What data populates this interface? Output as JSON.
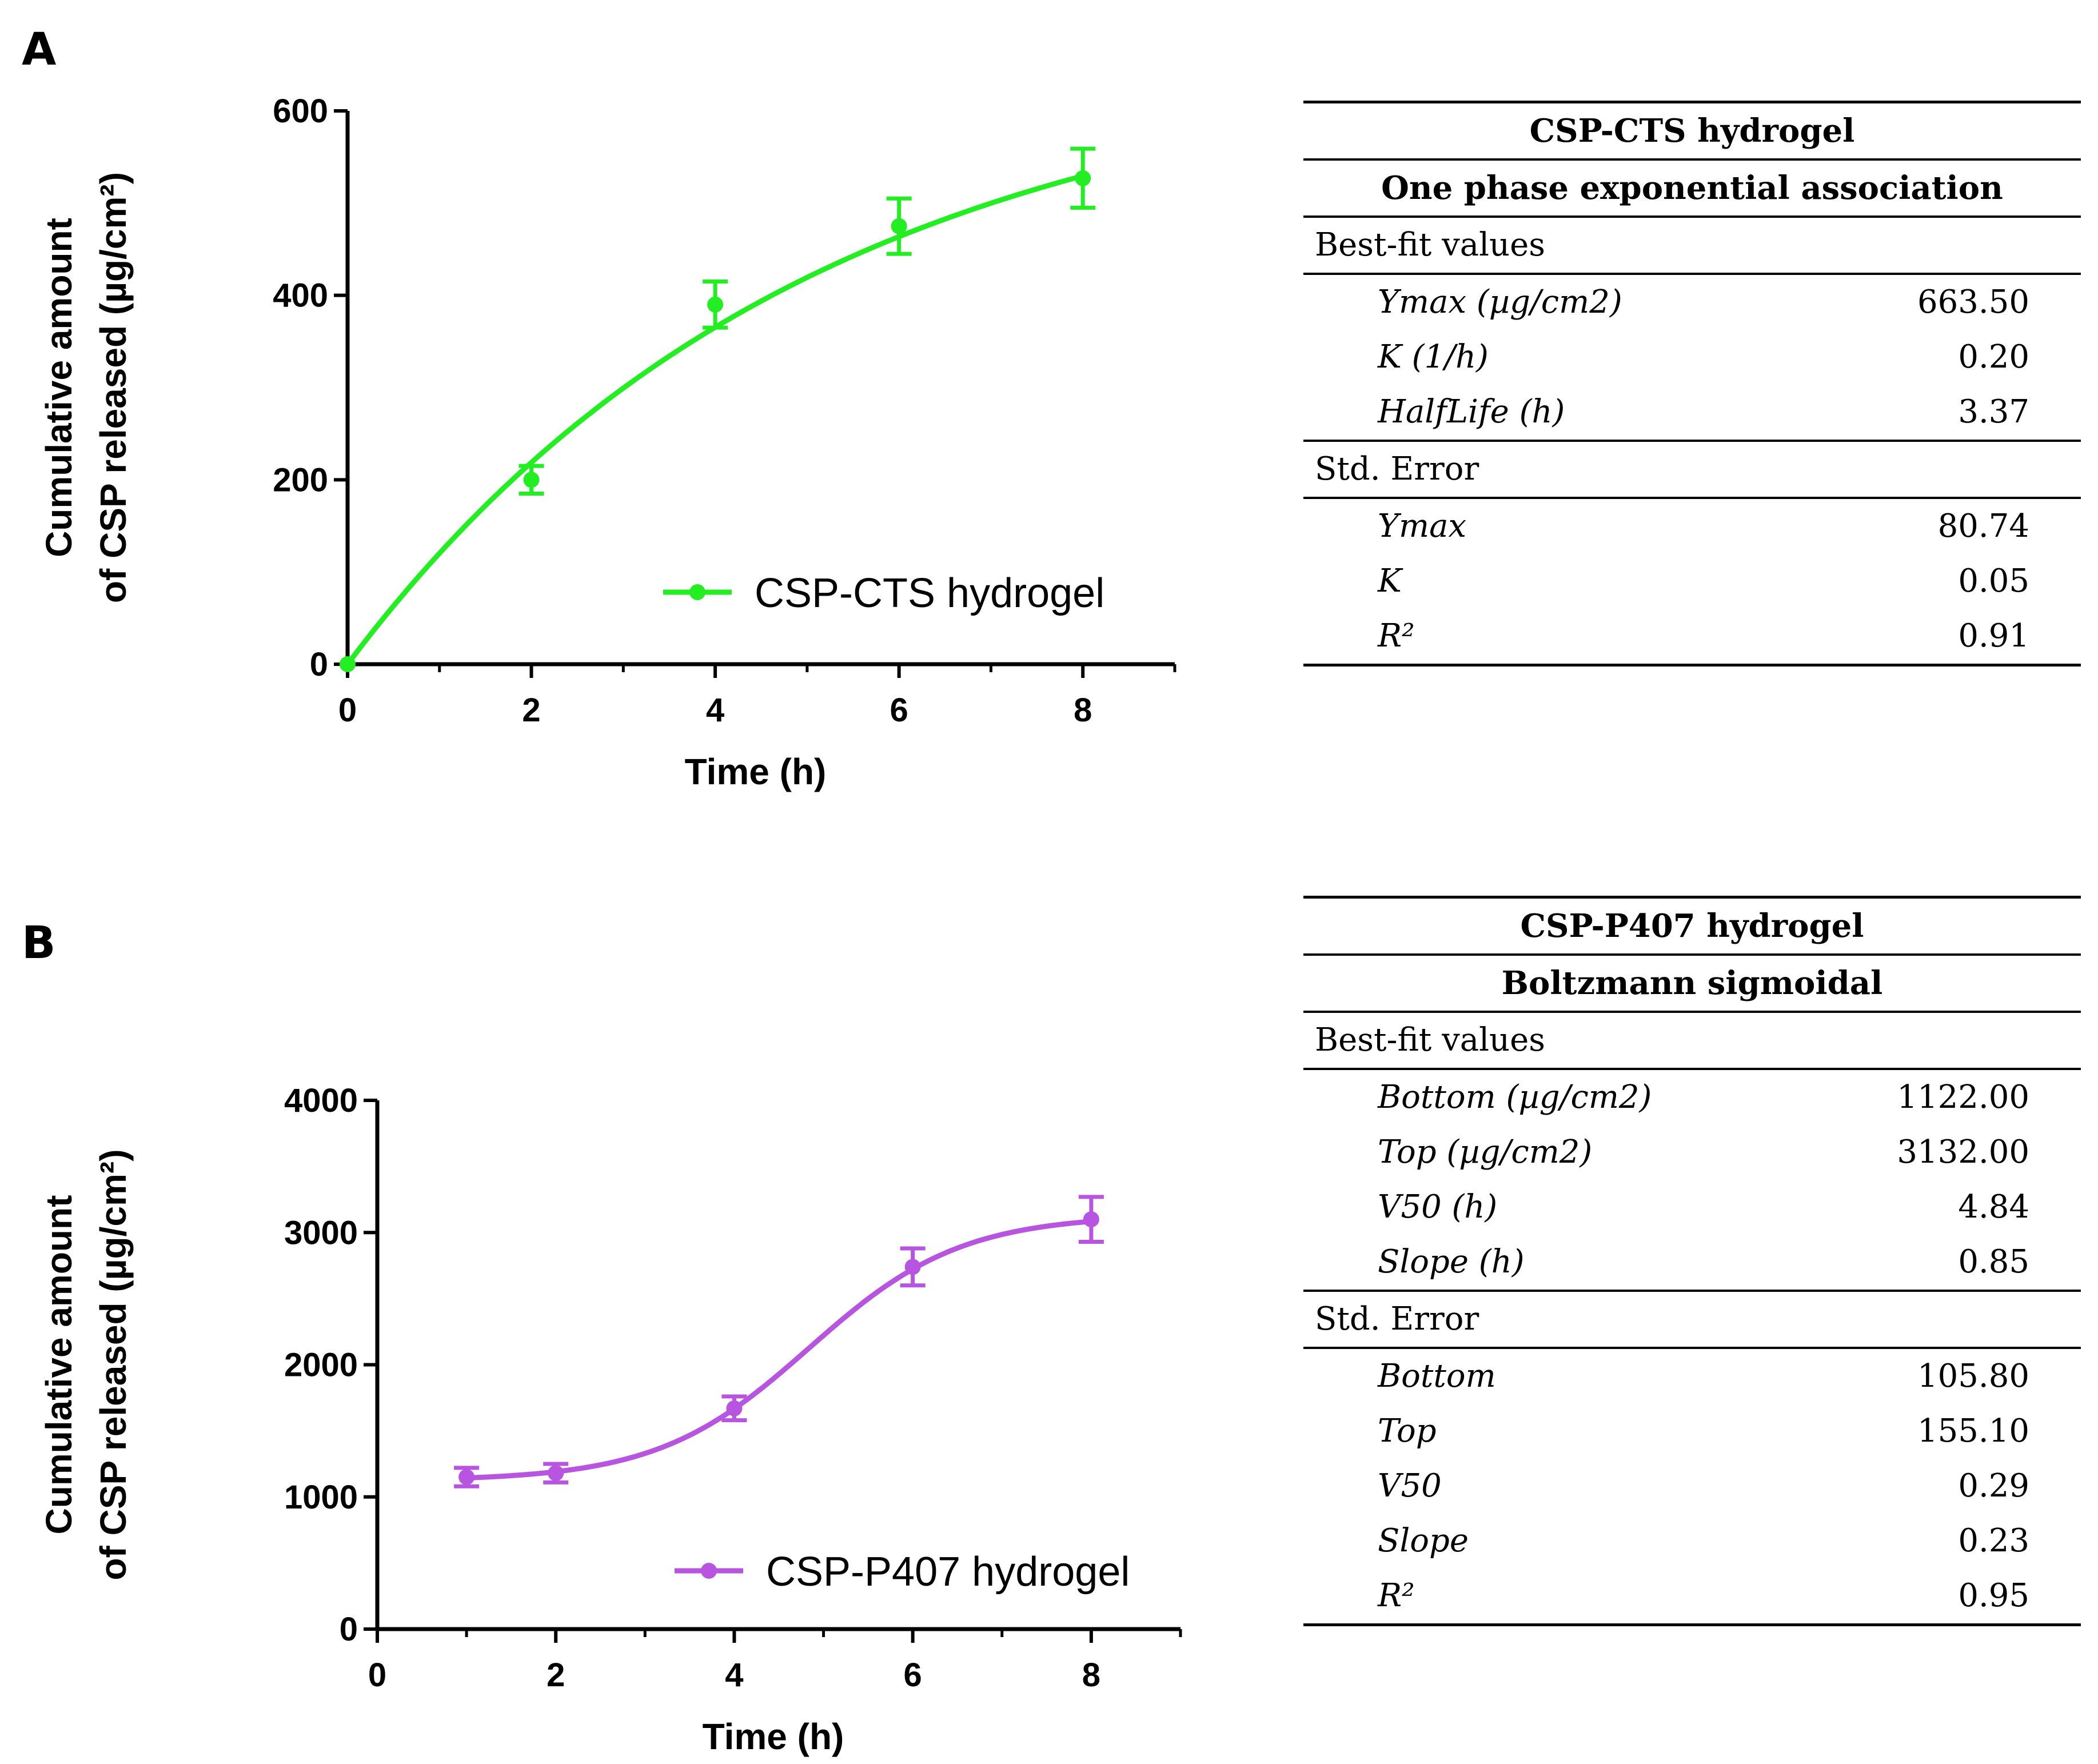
{
  "panels": {
    "a": {
      "label": "A"
    },
    "b": {
      "label": "B"
    }
  },
  "chart_data": [
    {
      "type": "line",
      "panel": "A",
      "title": "",
      "xlabel": "Time (h)",
      "ylabel_line1": "Cumulative amount",
      "ylabel_line2": "of CSP released (µg/cm²)",
      "xlim": [
        0,
        9
      ],
      "ylim": [
        0,
        600
      ],
      "xticks": [
        0,
        2,
        4,
        6,
        8
      ],
      "yticks": [
        0,
        200,
        400,
        600
      ],
      "color": "#22ee22",
      "legend_position": "lower-right",
      "series": [
        {
          "name": "CSP-CTS hydrogel",
          "x": [
            0,
            2,
            4,
            6,
            8
          ],
          "y": [
            0,
            200,
            390,
            475,
            527
          ],
          "error": [
            0,
            15,
            25,
            30,
            32
          ]
        }
      ],
      "fit": {
        "model": "one_phase_association",
        "Ymax": 663.5,
        "K": 0.2
      }
    },
    {
      "type": "line",
      "panel": "B",
      "title": "",
      "xlabel": "Time (h)",
      "ylabel_line1": "Cumulative  amount",
      "ylabel_line2": "of CSP released (µg/cm²)",
      "xlim": [
        0,
        9
      ],
      "ylim": [
        0,
        4000
      ],
      "xticks": [
        0,
        2,
        4,
        6,
        8
      ],
      "yticks": [
        0,
        1000,
        2000,
        3000,
        4000
      ],
      "color": "#b855e0",
      "legend_position": "lower-right",
      "series": [
        {
          "name": "CSP-P407 hydrogel",
          "x": [
            1,
            2,
            4,
            6,
            8
          ],
          "y": [
            1150,
            1180,
            1670,
            2740,
            3100
          ],
          "error": [
            70,
            70,
            90,
            140,
            170
          ]
        }
      ],
      "fit": {
        "model": "boltzmann_sigmoidal",
        "Bottom": 1122,
        "Top": 3132,
        "V50": 4.84,
        "Slope": 0.85
      }
    }
  ],
  "tables": {
    "a": {
      "title": "CSP-CTS hydrogel",
      "model": "One phase exponential association",
      "section1": "Best-fit values",
      "best_fit": [
        {
          "name": "Ymax (µg/cm2)",
          "value": "663.50"
        },
        {
          "name": "K (1/h)",
          "value": "0.20"
        },
        {
          "name": "HalfLife (h)",
          "value": "3.37"
        }
      ],
      "section2": "Std. Error",
      "std_error": [
        {
          "name": "Ymax",
          "value": "80.74"
        },
        {
          "name": "K",
          "value": "0.05"
        },
        {
          "name": "R²",
          "value": "0.91"
        }
      ]
    },
    "b": {
      "title": "CSP-P407 hydrogel",
      "model": "Boltzmann sigmoidal",
      "section1": "Best-fit values",
      "best_fit": [
        {
          "name": "Bottom (µg/cm2)",
          "value": "1122.00"
        },
        {
          "name": "Top (µg/cm2)",
          "value": "3132.00"
        },
        {
          "name": "V50 (h)",
          "value": "4.84"
        },
        {
          "name": "Slope (h)",
          "value": "0.85"
        }
      ],
      "section2": "Std. Error",
      "std_error": [
        {
          "name": "Bottom",
          "value": "105.80"
        },
        {
          "name": "Top",
          "value": "155.10"
        },
        {
          "name": "V50",
          "value": "0.29"
        },
        {
          "name": "Slope",
          "value": "0.23"
        },
        {
          "name": "R²",
          "value": "0.95"
        }
      ]
    }
  }
}
